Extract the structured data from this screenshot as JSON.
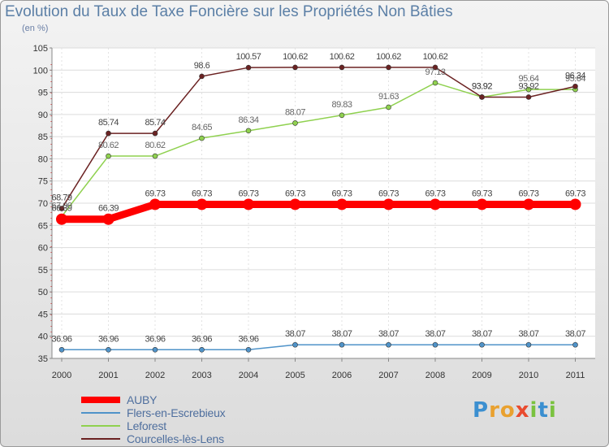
{
  "header": {
    "title": "Evolution du Taux de Taxe Foncière sur les Propriétés Non Bâties",
    "unit": "(en %)"
  },
  "chart_data": {
    "type": "line",
    "title": "Evolution du Taux de Taxe Foncière sur les Propriétés Non Bâties",
    "ylabel": "(en %)",
    "xlabel": "",
    "ylim": [
      35,
      105
    ],
    "yticks": [
      "35",
      "40",
      "45",
      "50",
      "55",
      "60",
      "65",
      "70",
      "75",
      "80",
      "85",
      "90",
      "95",
      "100",
      "105"
    ],
    "categories": [
      "2000",
      "2001",
      "2002",
      "2003",
      "2004",
      "2005",
      "2006",
      "2007",
      "2008",
      "2009",
      "2010",
      "2011"
    ],
    "series": [
      {
        "name": "AUBY",
        "color": "#ff0000",
        "values": [
          66.39,
          66.39,
          69.73,
          69.73,
          69.73,
          69.73,
          69.73,
          69.73,
          69.73,
          69.73,
          69.73,
          69.73
        ],
        "labels": [
          "66.39",
          "66.39",
          "69.73",
          "69.73",
          "69.73",
          "69.73",
          "69.73",
          "69.73",
          "69.73",
          "69.73",
          "69.73",
          "69.73"
        ]
      },
      {
        "name": "Flers-en-Escrebieux",
        "color": "#4f93c9",
        "values": [
          36.96,
          36.96,
          36.96,
          36.96,
          36.96,
          38.07,
          38.07,
          38.07,
          38.07,
          38.07,
          38.07,
          38.07
        ],
        "labels": [
          "36.96",
          "36.96",
          "36.96",
          "36.96",
          "36.96",
          "38.07",
          "38.07",
          "38.07",
          "38.07",
          "38.07",
          "38.07",
          "38.07"
        ]
      },
      {
        "name": "Leforest",
        "color": "#8fd14f",
        "values": [
          67.0,
          80.62,
          80.62,
          84.65,
          86.34,
          88.07,
          89.83,
          91.63,
          97.13,
          93.92,
          95.64,
          95.64
        ],
        "labels": [
          "67.00",
          "80.62",
          "80.62",
          "84.65",
          "86.34",
          "88.07",
          "89.83",
          "91.63",
          "97.13",
          "93.92",
          "95.64",
          "95.64"
        ]
      },
      {
        "name": "Courcelles-lès-Lens",
        "color": "#6b2222",
        "values": [
          68.79,
          85.74,
          85.74,
          98.6,
          100.57,
          100.62,
          100.62,
          100.62,
          100.62,
          93.92,
          93.92,
          96.34
        ],
        "labels": [
          "68.79",
          "85.74",
          "85.74",
          "98.6",
          "100.57",
          "100.62",
          "100.62",
          "100.62",
          "100.62",
          "93.92",
          "93.92",
          "96.34"
        ]
      }
    ],
    "legend": "bottom-left"
  },
  "logo": {
    "text": "Proxiti",
    "colors": [
      "#3b8fd0",
      "#e9a12f",
      "#e9a12f",
      "#e94b2f",
      "#7ac23f",
      "#3b8fd0",
      "#7ac23f"
    ]
  }
}
